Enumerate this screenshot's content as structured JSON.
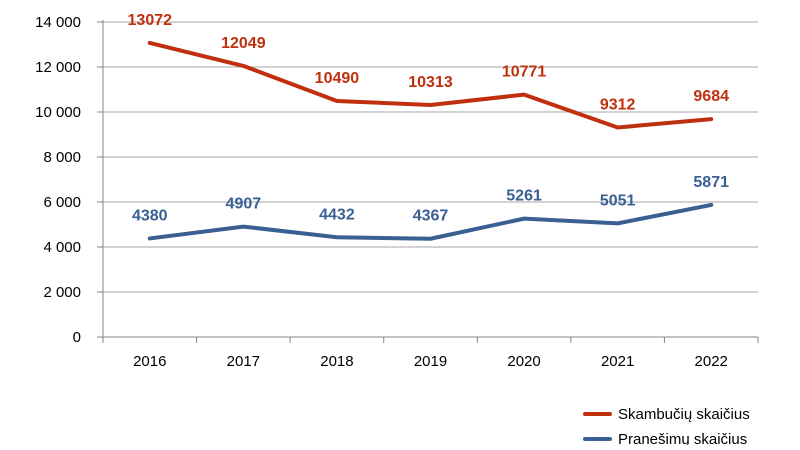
{
  "chart_data": {
    "type": "line",
    "title": "",
    "xlabel": "",
    "ylabel": "",
    "x": [
      "2016",
      "2017",
      "2018",
      "2019",
      "2020",
      "2021",
      "2022"
    ],
    "ylim": [
      0,
      14000
    ],
    "yticks": [
      {
        "value": 0,
        "label": "0"
      },
      {
        "value": 2000,
        "label": "2 000"
      },
      {
        "value": 4000,
        "label": "4 000"
      },
      {
        "value": 6000,
        "label": "6 000"
      },
      {
        "value": 8000,
        "label": "8 000"
      },
      {
        "value": 10000,
        "label": "10 000"
      },
      {
        "value": 12000,
        "label": "12 000"
      },
      {
        "value": 14000,
        "label": "14 000"
      }
    ],
    "grid": true,
    "legend_position": "bottom-right",
    "series": [
      {
        "name": "Skambučių skaičius",
        "color": "#c0300f",
        "values": [
          13072,
          12049,
          10490,
          10313,
          10771,
          9312,
          9684
        ],
        "labels": [
          "13072",
          "12049",
          "10490",
          "10313",
          "10771",
          "9312",
          "9684"
        ],
        "label_placement": "above"
      },
      {
        "name": "Pranešimų skaičius",
        "color": "#3a5f93",
        "values": [
          4380,
          4907,
          4432,
          4367,
          5261,
          5051,
          5871
        ],
        "labels": [
          "4380",
          "4907",
          "4432",
          "4367",
          "5261",
          "5051",
          "5871"
        ],
        "label_placement": "above"
      }
    ]
  }
}
